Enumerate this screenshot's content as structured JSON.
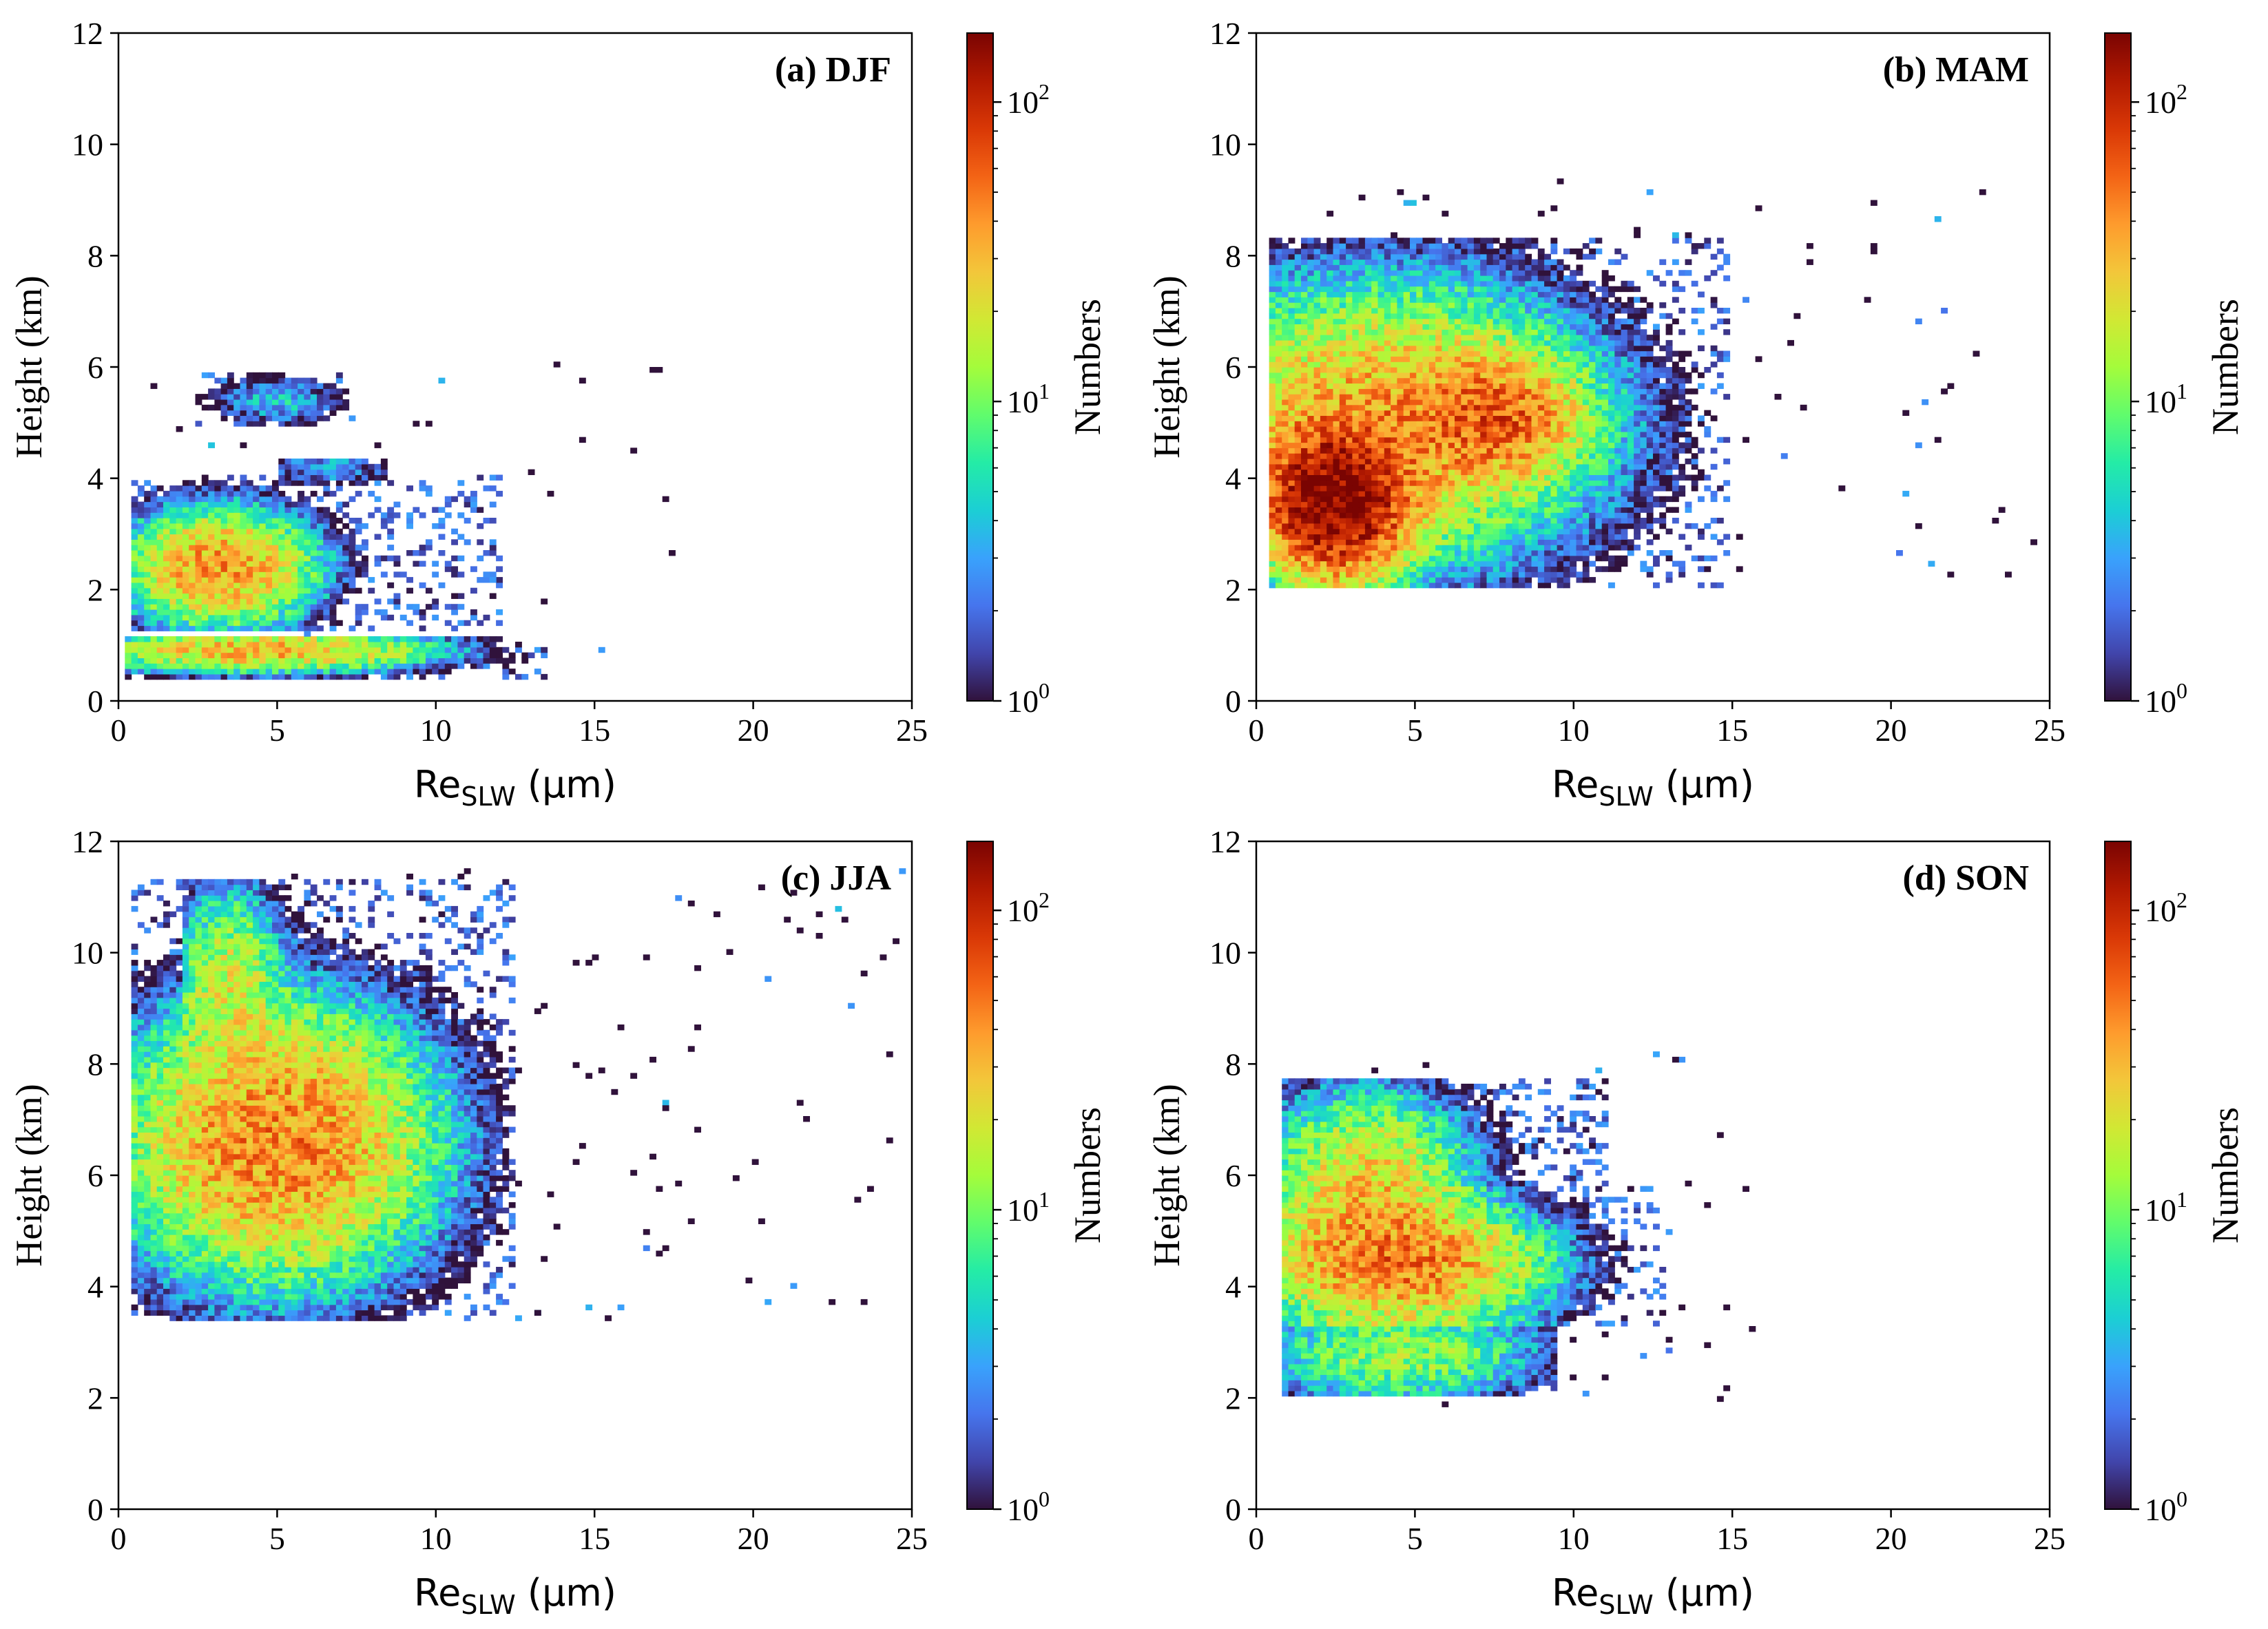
{
  "figure": {
    "colorscale": [
      "#30123b",
      "#4145ab",
      "#4675ed",
      "#39a2fc",
      "#1bcfd4",
      "#24eca6",
      "#61fc6c",
      "#a4fc3b",
      "#d1e834",
      "#f3c63a",
      "#fe9b2d",
      "#f36315",
      "#d93806",
      "#b11901",
      "#7a0402"
    ],
    "panels": [
      {
        "id": "a",
        "chart_data": {
          "type": "heatmap",
          "title": "(a) DJF",
          "xlabel": "Re",
          "xlabel_sub": "SLW",
          "xlabel_unit": " (µm)",
          "ylabel": "Height (km)",
          "xlim": [
            0,
            25
          ],
          "ylim": [
            0,
            12
          ],
          "xticks": [
            "0",
            "5",
            "10",
            "15",
            "20",
            "25"
          ],
          "yticks": [
            "0",
            "2",
            "4",
            "6",
            "8",
            "10",
            "12"
          ],
          "colorbar": {
            "label": "Numbers",
            "scale": "log",
            "range": [
              1,
              170
            ],
            "ticks": [
              {
                "base": "10",
                "exp": "0"
              },
              {
                "base": "10",
                "exp": "1"
              },
              {
                "base": "10",
                "exp": "2"
              }
            ]
          },
          "clusters": [
            {
              "x": 3.2,
              "y": 2.4,
              "sx": 1.6,
              "sy": 0.55,
              "peak": 40,
              "xmin": 0.5,
              "xmax": 12,
              "ymin": 1.3,
              "ymax": 4.1
            },
            {
              "x": 4.5,
              "y": 0.9,
              "sx": 3.0,
              "sy": 0.2,
              "peak": 30,
              "xmin": 0.3,
              "xmax": 13.5,
              "ymin": 0.4,
              "ymax": 1.2
            },
            {
              "x": 6.5,
              "y": 4.2,
              "sx": 1.2,
              "sy": 0.2,
              "peak": 3,
              "xmin": 5,
              "xmax": 8.5,
              "ymin": 3.9,
              "ymax": 4.4
            },
            {
              "x": 5.0,
              "y": 5.4,
              "sx": 1.2,
              "sy": 0.25,
              "peak": 4,
              "xmin": 2.5,
              "xmax": 7.5,
              "ymin": 4.9,
              "ymax": 5.9
            }
          ],
          "sparse": {
            "xmin": 1,
            "xmax": 17.5,
            "ymin": 0.4,
            "ymax": 6.3,
            "count": 40
          }
        }
      },
      {
        "id": "b",
        "chart_data": {
          "type": "heatmap",
          "title": "(b) MAM",
          "xlabel": "Re",
          "xlabel_sub": "SLW",
          "xlabel_unit": " (µm)",
          "ylabel": "Height (km)",
          "xlim": [
            0,
            25
          ],
          "ylim": [
            0,
            12
          ],
          "xticks": [
            "0",
            "5",
            "10",
            "15",
            "20",
            "25"
          ],
          "yticks": [
            "0",
            "2",
            "4",
            "6",
            "8",
            "10",
            "12"
          ],
          "colorbar": {
            "label": "Numbers",
            "scale": "log",
            "range": [
              1,
              170
            ],
            "ticks": [
              {
                "base": "10",
                "exp": "0"
              },
              {
                "base": "10",
                "exp": "1"
              },
              {
                "base": "10",
                "exp": "2"
              }
            ]
          },
          "clusters": [
            {
              "x": 2.5,
              "y": 3.6,
              "sx": 1.2,
              "sy": 0.7,
              "peak": 170,
              "xmin": 0.5,
              "xmax": 10,
              "ymin": 2.0,
              "ymax": 8.3
            },
            {
              "x": 4.0,
              "y": 5.0,
              "sx": 3.5,
              "sy": 1.3,
              "peak": 35,
              "xmin": 0.5,
              "xmax": 15,
              "ymin": 2.0,
              "ymax": 8.3
            },
            {
              "x": 7.5,
              "y": 5.1,
              "sx": 1.5,
              "sy": 0.6,
              "peak": 45,
              "xmin": 4,
              "xmax": 14,
              "ymin": 3,
              "ymax": 7
            }
          ],
          "sparse": {
            "xmin": 1,
            "xmax": 24.5,
            "ymin": 2.2,
            "ymax": 9.4,
            "count": 110
          }
        }
      },
      {
        "id": "c",
        "chart_data": {
          "type": "heatmap",
          "title": "(c) JJA",
          "xlabel": "Re",
          "xlabel_sub": "SLW",
          "xlabel_unit": " (µm)",
          "ylabel": "Height (km)",
          "xlim": [
            0,
            25
          ],
          "ylim": [
            0,
            12
          ],
          "xticks": [
            "0",
            "5",
            "10",
            "15",
            "20",
            "25"
          ],
          "yticks": [
            "0",
            "2",
            "4",
            "6",
            "8",
            "10",
            "12"
          ],
          "colorbar": {
            "label": "Numbers",
            "scale": "log",
            "range": [
              1,
              170
            ],
            "ticks": [
              {
                "base": "10",
                "exp": "0"
              },
              {
                "base": "10",
                "exp": "1"
              },
              {
                "base": "10",
                "exp": "2"
              }
            ]
          },
          "clusters": [
            {
              "x": 5.0,
              "y": 6.6,
              "sx": 2.6,
              "sy": 1.3,
              "peak": 45,
              "xmin": 0.5,
              "xmax": 12.5,
              "ymin": 3.4,
              "ymax": 11.3
            },
            {
              "x": 3.5,
              "y": 9.6,
              "sx": 0.9,
              "sy": 0.9,
              "peak": 15,
              "xmin": 2,
              "xmax": 6,
              "ymin": 8,
              "ymax": 11.3
            }
          ],
          "sparse": {
            "xmin": 2,
            "xmax": 24.8,
            "ymin": 3.4,
            "ymax": 11.5,
            "count": 120
          }
        }
      },
      {
        "id": "d",
        "chart_data": {
          "type": "heatmap",
          "title": "(d) SON",
          "xlabel": "Re",
          "xlabel_sub": "SLW",
          "xlabel_unit": " (µm)",
          "ylabel": "Height (km)",
          "xlim": [
            0,
            25
          ],
          "ylim": [
            0,
            12
          ],
          "xticks": [
            "0",
            "5",
            "10",
            "15",
            "20",
            "25"
          ],
          "yticks": [
            "0",
            "2",
            "4",
            "6",
            "8",
            "10",
            "12"
          ],
          "colorbar": {
            "label": "Numbers",
            "scale": "log",
            "range": [
              1,
              170
            ],
            "ticks": [
              {
                "base": "10",
                "exp": "0"
              },
              {
                "base": "10",
                "exp": "1"
              },
              {
                "base": "10",
                "exp": "2"
              }
            ]
          },
          "clusters": [
            {
              "x": 4.5,
              "y": 4.4,
              "sx": 2.4,
              "sy": 0.6,
              "peak": 45,
              "xmin": 0.8,
              "xmax": 13,
              "ymin": 3.3,
              "ymax": 5.8
            },
            {
              "x": 3.5,
              "y": 5.8,
              "sx": 1.8,
              "sy": 0.9,
              "peak": 25,
              "xmin": 0.8,
              "xmax": 11,
              "ymin": 3.3,
              "ymax": 7.7
            },
            {
              "x": 4.5,
              "y": 2.8,
              "sx": 2.5,
              "sy": 0.5,
              "peak": 12,
              "xmin": 0.8,
              "xmax": 9.5,
              "ymin": 2.0,
              "ymax": 3.5
            }
          ],
          "sparse": {
            "xmin": 1,
            "xmax": 16,
            "ymin": 1.7,
            "ymax": 8.2,
            "count": 70
          }
        }
      }
    ]
  }
}
